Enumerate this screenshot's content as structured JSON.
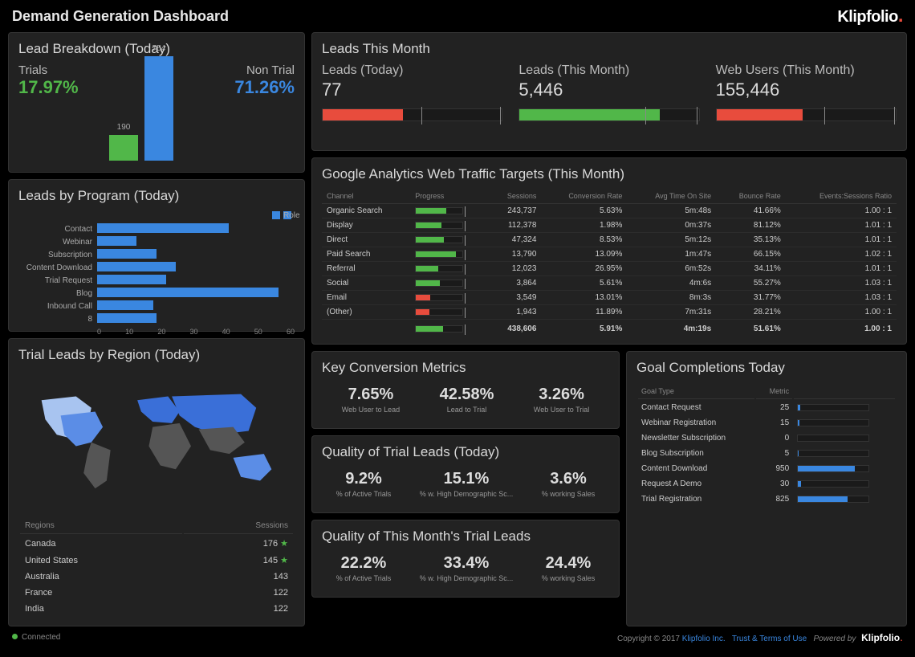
{
  "header": {
    "title": "Demand Generation Dashboard",
    "logo": "Klipfolio"
  },
  "colors": {
    "green": "#51b749",
    "blue": "#3a87e0",
    "red": "#e84c3d",
    "bg": "#222222",
    "panel_border": "#333333",
    "text": "#d0d0d0",
    "muted": "#888888"
  },
  "lead_breakdown": {
    "title": "Lead Breakdown (Today)",
    "trials_label": "Trials",
    "trials_pct": "17.97%",
    "nontrial_label": "Non Trial",
    "nontrial_pct": "71.26%",
    "bar1": {
      "value": 190,
      "label": "190",
      "height_pct": 25,
      "color": "#51b749"
    },
    "bar2": {
      "value": 754,
      "label": "754",
      "height_pct": 100,
      "color": "#3a87e0"
    }
  },
  "leads_program": {
    "title": "Leads by Program (Today)",
    "legend": "Role",
    "categories": [
      "Contact",
      "Webinar",
      "Subscription",
      "Content Download",
      "Trial Request",
      "Blog",
      "Inbound Call",
      "8"
    ],
    "values": [
      40,
      12,
      18,
      24,
      21,
      55,
      17,
      18
    ],
    "xmax": 60,
    "xticks": [
      "0",
      "10",
      "20",
      "30",
      "40",
      "50",
      "60"
    ],
    "bar_color": "#3a87e0"
  },
  "trial_region": {
    "title": "Trial Leads by Region (Today)",
    "header_regions": "Regions",
    "header_sessions": "Sessions",
    "rows": [
      {
        "region": "Canada",
        "sessions": "176",
        "star": true
      },
      {
        "region": "United States",
        "sessions": "145",
        "star": true
      },
      {
        "region": "Australia",
        "sessions": "143",
        "star": false
      },
      {
        "region": "France",
        "sessions": "122",
        "star": false
      },
      {
        "region": "India",
        "sessions": "122",
        "star": false
      }
    ],
    "map_colors": {
      "high": "#3a6fd8",
      "mid": "#5b8de6",
      "low": "#a8c4f0",
      "none": "#555555"
    }
  },
  "leads_month": {
    "title": "Leads This Month",
    "cols": [
      {
        "label": "Leads (Today)",
        "value": "77",
        "fill_pct": 45,
        "color": "#e84c3d",
        "tick_pct": 55
      },
      {
        "label": "Leads (This Month)",
        "value": "5,446",
        "fill_pct": 78,
        "color": "#51b749",
        "tick_pct": 70
      },
      {
        "label": "Web Users (This Month)",
        "value": "155,446",
        "fill_pct": 48,
        "color": "#e84c3d",
        "tick_pct": 60
      }
    ]
  },
  "ga_targets": {
    "title": "Google Analytics Web Traffic Targets (This Month)",
    "headers": [
      "Channel",
      "Progress",
      "Sessions",
      "Conversion Rate",
      "Avg Time On Site",
      "Bounce Rate",
      "Events:Sessions Ratio"
    ],
    "rows": [
      {
        "channel": "Organic Search",
        "prog_pct": 65,
        "color": "#51b749",
        "sessions": "243,737",
        "conv": "5.63%",
        "time": "5m:48s",
        "bounce": "41.66%",
        "ratio": "1.00 : 1"
      },
      {
        "channel": "Display",
        "prog_pct": 55,
        "color": "#51b749",
        "sessions": "112,378",
        "conv": "1.98%",
        "time": "0m:37s",
        "bounce": "81.12%",
        "ratio": "1.01 : 1"
      },
      {
        "channel": "Direct",
        "prog_pct": 60,
        "color": "#51b749",
        "sessions": "47,324",
        "conv": "8.53%",
        "time": "5m:12s",
        "bounce": "35.13%",
        "ratio": "1.01 : 1"
      },
      {
        "channel": "Paid Search",
        "prog_pct": 85,
        "color": "#51b749",
        "sessions": "13,790",
        "conv": "13.09%",
        "time": "1m:47s",
        "bounce": "66.15%",
        "ratio": "1.02 : 1"
      },
      {
        "channel": "Referral",
        "prog_pct": 48,
        "color": "#51b749",
        "sessions": "12,023",
        "conv": "26.95%",
        "time": "6m:52s",
        "bounce": "34.11%",
        "ratio": "1.01 : 1"
      },
      {
        "channel": "Social",
        "prog_pct": 52,
        "color": "#51b749",
        "sessions": "3,864",
        "conv": "5.61%",
        "time": "4m:6s",
        "bounce": "55.27%",
        "ratio": "1.03 : 1"
      },
      {
        "channel": "Email",
        "prog_pct": 30,
        "color": "#e84c3d",
        "sessions": "3,549",
        "conv": "13.01%",
        "time": "8m:3s",
        "bounce": "31.77%",
        "ratio": "1.03 : 1"
      },
      {
        "channel": "(Other)",
        "prog_pct": 28,
        "color": "#e84c3d",
        "sessions": "1,943",
        "conv": "11.89%",
        "time": "7m:31s",
        "bounce": "28.21%",
        "ratio": "1.00 : 1"
      }
    ],
    "total": {
      "prog_pct": 58,
      "color": "#51b749",
      "sessions": "438,606",
      "conv": "5.91%",
      "time": "4m:19s",
      "bounce": "51.61%",
      "ratio": "1.00 : 1"
    }
  },
  "key_conv": {
    "title": "Key Conversion Metrics",
    "metrics": [
      {
        "val": "7.65%",
        "lbl": "Web User to Lead"
      },
      {
        "val": "42.58%",
        "lbl": "Lead to Trial"
      },
      {
        "val": "3.26%",
        "lbl": "Web User to Trial"
      }
    ]
  },
  "qtl_today": {
    "title": "Quality of Trial Leads (Today)",
    "metrics": [
      {
        "val": "9.2%",
        "lbl": "% of Active Trials"
      },
      {
        "val": "15.1%",
        "lbl": "% w. High Demographic Sc..."
      },
      {
        "val": "3.6%",
        "lbl": "% working Sales"
      }
    ]
  },
  "qtl_month": {
    "title": "Quality of This Month's Trial Leads",
    "metrics": [
      {
        "val": "22.2%",
        "lbl": "% of Active Trials"
      },
      {
        "val": "33.4%",
        "lbl": "% w. High Demographic Sc..."
      },
      {
        "val": "24.4%",
        "lbl": "% working Sales"
      }
    ]
  },
  "goal_comp": {
    "title": "Goal Completions Today",
    "headers": [
      "Goal Type",
      "Metric"
    ],
    "rows": [
      {
        "type": "Contact Request",
        "metric": "25",
        "pct": 3
      },
      {
        "type": "Webinar Registration",
        "metric": "15",
        "pct": 2
      },
      {
        "type": "Newsletter Subscription",
        "metric": "0",
        "pct": 0
      },
      {
        "type": "Blog Subscription",
        "metric": "5",
        "pct": 1
      },
      {
        "type": "Content Download",
        "metric": "950",
        "pct": 80
      },
      {
        "type": "Request A Demo",
        "metric": "30",
        "pct": 4
      },
      {
        "type": "Trial Registration",
        "metric": "825",
        "pct": 70
      }
    ]
  },
  "footer": {
    "connected": "Connected",
    "copyright": "Copyright © 2017",
    "company": "Klipfolio Inc.",
    "terms": "Trust & Terms of Use",
    "powered": "Powered by",
    "logo": "Klipfolio"
  }
}
